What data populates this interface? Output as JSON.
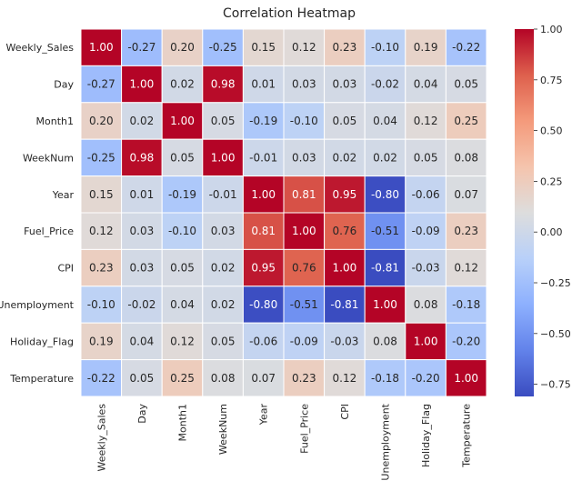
{
  "chart_data": {
    "type": "heatmap",
    "title": "Correlation Heatmap",
    "xlabel": "",
    "ylabel": "",
    "variables": [
      "Weekly_Sales",
      "Day",
      "Month1",
      "WeekNum",
      "Year",
      "Fuel_Price",
      "CPI",
      "Unemployment",
      "Holiday_Flag",
      "Temperature"
    ],
    "values": [
      [
        1.0,
        -0.27,
        0.2,
        -0.25,
        0.15,
        0.12,
        0.23,
        -0.1,
        0.19,
        -0.22
      ],
      [
        -0.27,
        1.0,
        0.02,
        0.98,
        0.01,
        0.03,
        0.03,
        -0.02,
        0.04,
        0.05
      ],
      [
        0.2,
        0.02,
        1.0,
        0.05,
        -0.19,
        -0.1,
        0.05,
        0.04,
        0.12,
        0.25
      ],
      [
        -0.25,
        0.98,
        0.05,
        1.0,
        -0.01,
        0.03,
        0.02,
        0.02,
        0.05,
        0.08
      ],
      [
        0.15,
        0.01,
        -0.19,
        -0.01,
        1.0,
        0.81,
        0.95,
        -0.8,
        -0.06,
        0.07
      ],
      [
        0.12,
        0.03,
        -0.1,
        0.03,
        0.81,
        1.0,
        0.76,
        -0.51,
        -0.09,
        0.23
      ],
      [
        0.23,
        0.03,
        0.05,
        0.02,
        0.95,
        0.76,
        1.0,
        -0.81,
        -0.03,
        0.12
      ],
      [
        -0.1,
        -0.02,
        0.04,
        0.02,
        -0.8,
        -0.51,
        -0.81,
        1.0,
        0.08,
        -0.18
      ],
      [
        0.19,
        0.04,
        0.12,
        0.05,
        -0.06,
        -0.09,
        -0.03,
        0.08,
        1.0,
        -0.2
      ],
      [
        -0.22,
        0.05,
        0.25,
        0.08,
        0.07,
        0.23,
        0.12,
        -0.18,
        -0.2,
        1.0
      ]
    ],
    "value_format": "0.00",
    "colormap": "coolwarm",
    "vmin": -0.81,
    "vmax": 1.0,
    "colorbar": {
      "ticks": [
        1.0,
        0.75,
        0.5,
        0.25,
        0.0,
        -0.25,
        -0.5,
        -0.75
      ],
      "tick_labels": [
        "1.00",
        "0.75",
        "0.50",
        "0.25",
        "0.00",
        "−0.25",
        "−0.50",
        "−0.75"
      ],
      "placement": "right"
    },
    "cell_border_color": "#ffffff",
    "grid": false
  }
}
